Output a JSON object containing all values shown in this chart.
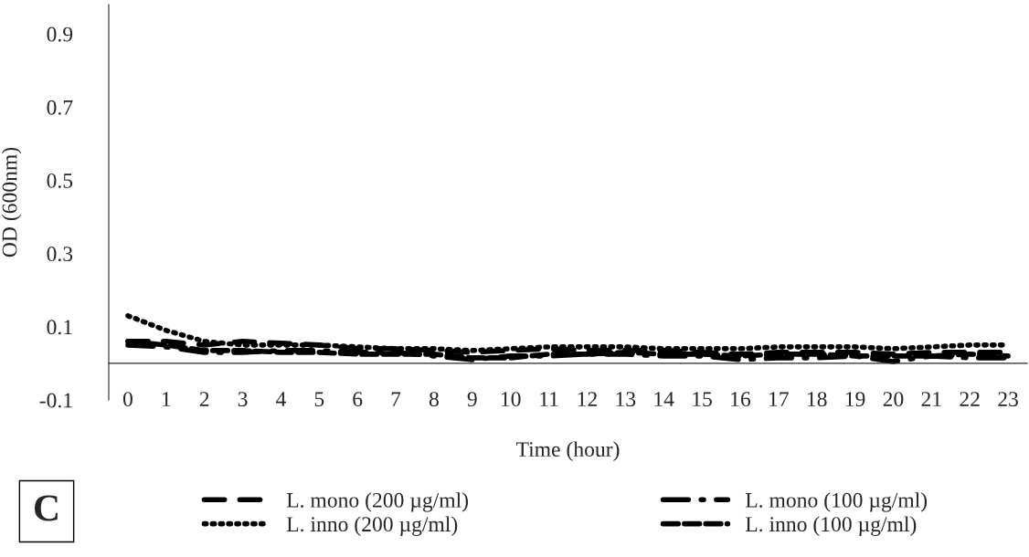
{
  "chart_data": {
    "type": "line",
    "xlabel": "Time (hour)",
    "ylabel": "OD (600nm)",
    "categories": [
      "0",
      "1",
      "2",
      "3",
      "4",
      "5",
      "6",
      "7",
      "8",
      "9",
      "10",
      "11",
      "12",
      "13",
      "14",
      "15",
      "16",
      "17",
      "18",
      "19",
      "20",
      "21",
      "22",
      "23"
    ],
    "ylim": [
      -0.1,
      0.98
    ],
    "yticks": [
      -0.1,
      0.1,
      0.3,
      0.5,
      0.7,
      0.9
    ],
    "series": [
      {
        "name": "L. mono (200 µg/ml)",
        "color": "#000000",
        "line_style": "longdash",
        "values": [
          0.06,
          0.06,
          0.05,
          0.06,
          0.055,
          0.05,
          0.04,
          0.04,
          0.035,
          0.03,
          0.035,
          0.04,
          0.035,
          0.035,
          0.035,
          0.03,
          0.025,
          0.03,
          0.03,
          0.03,
          0.025,
          0.03,
          0.03,
          0.03
        ]
      },
      {
        "name": "L. inno (200 µg/ml)",
        "color": "#000000",
        "line_style": "dotted",
        "values": [
          0.13,
          0.09,
          0.06,
          0.05,
          0.05,
          0.05,
          0.045,
          0.04,
          0.04,
          0.035,
          0.04,
          0.045,
          0.045,
          0.045,
          0.04,
          0.04,
          0.04,
          0.045,
          0.045,
          0.045,
          0.04,
          0.045,
          0.05,
          0.05
        ]
      },
      {
        "name": "L. mono (100 µg/ml)",
        "color": "#000000",
        "line_style": "dashdot",
        "values": [
          0.05,
          0.045,
          0.03,
          0.03,
          0.035,
          0.035,
          0.03,
          0.03,
          0.02,
          0.01,
          0.02,
          0.02,
          0.025,
          0.025,
          0.02,
          0.02,
          0.01,
          0.015,
          0.015,
          0.02,
          0.005,
          0.02,
          0.015,
          0.015
        ]
      },
      {
        "name": "L. inno (100 µg/ml)",
        "color": "#000000",
        "line_style": "dashed",
        "values": [
          0.06,
          0.05,
          0.035,
          0.035,
          0.03,
          0.03,
          0.025,
          0.025,
          0.025,
          0.015,
          0.015,
          0.025,
          0.025,
          0.03,
          0.025,
          0.025,
          0.02,
          0.025,
          0.025,
          0.02,
          0.02,
          0.02,
          0.025,
          0.02
        ]
      }
    ],
    "annotations": [
      "C"
    ],
    "legend": "bottom",
    "grid": false
  }
}
